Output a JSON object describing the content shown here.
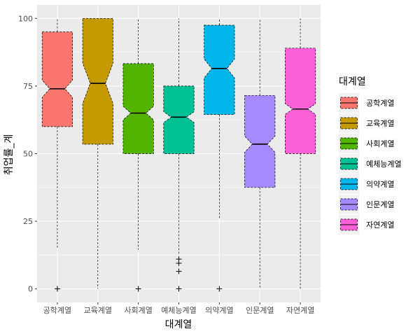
{
  "chart_data": {
    "type": "boxplot",
    "notched": true,
    "xlabel": "대계열",
    "ylabel": "취업률_계",
    "ylim": [
      -5,
      105
    ],
    "yticks": [
      0,
      25,
      50,
      75,
      100
    ],
    "grid": true,
    "legend_position": "right",
    "legend_title": "대계열",
    "categories": [
      "공학계열",
      "교육계열",
      "사회계열",
      "예체능계열",
      "의약계열",
      "인문계열",
      "자연계열"
    ],
    "colors": [
      "#F8766D",
      "#C49A00",
      "#53B400",
      "#00C094",
      "#00B6EB",
      "#A58AFF",
      "#FB61D7"
    ],
    "boxes": [
      {
        "category": "공학계열",
        "lower_whisker": 15,
        "q1": 60,
        "median": 74,
        "q3": 95,
        "upper_whisker": 100,
        "notch": [
          70.8,
          77.2
        ],
        "outliers": [
          0
        ]
      },
      {
        "category": "교육계열",
        "lower_whisker": 0,
        "q1": 53.5,
        "median": 76,
        "q3": 100,
        "upper_whisker": 100,
        "notch": [
          68.5,
          83.5
        ],
        "outliers": []
      },
      {
        "category": "사회계열",
        "lower_whisker": 14.5,
        "q1": 50,
        "median": 65,
        "q3": 83.3,
        "upper_whisker": 100,
        "notch": [
          62.5,
          67.5
        ],
        "outliers": [
          0
        ]
      },
      {
        "category": "예체능계열",
        "lower_whisker": 12.5,
        "q1": 50,
        "median": 63.5,
        "q3": 75,
        "upper_whisker": 100,
        "notch": [
          61.5,
          65.5
        ],
        "outliers": [
          11,
          9.5,
          6.5,
          0
        ]
      },
      {
        "category": "의약계열",
        "lower_whisker": 26,
        "q1": 64.5,
        "median": 81.5,
        "q3": 97.5,
        "upper_whisker": 100,
        "notch": [
          78,
          85
        ],
        "outliers": [
          0
        ]
      },
      {
        "category": "인문계열",
        "lower_whisker": 0,
        "q1": 37.5,
        "median": 53.5,
        "q3": 71.5,
        "upper_whisker": 100,
        "notch": [
          50.5,
          56.5
        ],
        "outliers": []
      },
      {
        "category": "자연계열",
        "lower_whisker": 0,
        "q1": 50,
        "median": 66.5,
        "q3": 89,
        "upper_whisker": 100,
        "notch": [
          64.5,
          68.5
        ],
        "outliers": []
      }
    ]
  }
}
